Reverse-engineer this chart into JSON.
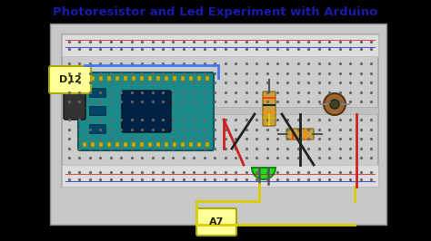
{
  "title": "Photoresistor and Led Experiment with Arduino",
  "title_color": "#1a1aaa",
  "title_fontsize": 9.5,
  "bg_color": "#000000",
  "circuit_bg": "#C8C8C8",
  "breadboard_bg": "#D8D8D8",
  "breadboard_border": "#AAAAAA",
  "arduino_color": "#1a8a8a",
  "label_d12": "D12",
  "label_a7": "A7",
  "label_color": "#222200",
  "label_bg": "#FFFF99",
  "label_border": "#AAAA00"
}
